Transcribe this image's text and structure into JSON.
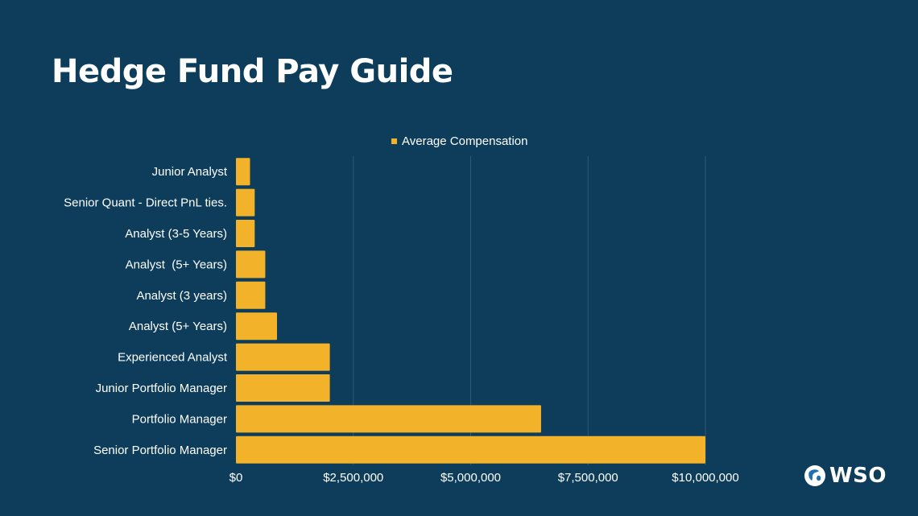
{
  "title": "Hedge Fund Pay Guide",
  "colors": {
    "background": "#0d3d5a",
    "bar": "#f2b32a",
    "grid": "#2a5a76",
    "text": "#ffffff"
  },
  "logo": {
    "text": "WSO",
    "icon": "globe-icon"
  },
  "chart_data": {
    "type": "bar",
    "orientation": "horizontal",
    "title": "Hedge Fund Pay Guide",
    "legend": {
      "label": "Average Compensation",
      "position": "top-center"
    },
    "categories": [
      "Junior Analyst",
      "Senior Quant - Direct PnL ties.",
      "Analyst (3-5 Years)",
      "Analyst  (5+ Years)",
      "Analyst (3 years)",
      "Analyst (5+ Years)",
      "Experienced Analyst",
      "Junior Portfolio Manager",
      "Portfolio Manager",
      "Senior Portfolio Manager"
    ],
    "series": [
      {
        "name": "Average Compensation",
        "values": [
          300000,
          400000,
          400000,
          625000,
          625000,
          875000,
          2000000,
          2000000,
          6500000,
          10000000
        ]
      }
    ],
    "xlim": [
      0,
      10000000
    ],
    "xticks": [
      0,
      2500000,
      5000000,
      7500000,
      10000000
    ],
    "xtick_labels": [
      "$0",
      "$2,500,000",
      "$5,000,000",
      "$7,500,000",
      "$10,000,000"
    ],
    "xlabel": "",
    "ylabel": "",
    "grid": true
  }
}
